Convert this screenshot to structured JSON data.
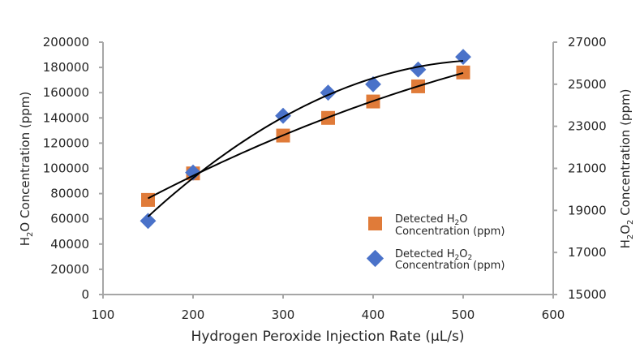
{
  "chart_data": {
    "type": "scatter",
    "title": "",
    "xlabel": "Hydrogen Peroxide Injection Rate (µL/s)",
    "ylabel_left": {
      "pre": "H",
      "sub": "2",
      "post": "O Concentration (ppm)"
    },
    "ylabel_right": {
      "pre": "H",
      "sub1": "2",
      "mid": "O",
      "sub2": "2",
      "post": " Concentration (ppm)"
    },
    "xlim": [
      100,
      600
    ],
    "ylim_left": [
      0,
      200000
    ],
    "ylim_right": [
      15000,
      27000
    ],
    "x_ticks": [
      "100",
      "200",
      "300",
      "400",
      "500",
      "600"
    ],
    "y_ticks_left": [
      "0",
      "20000",
      "40000",
      "60000",
      "80000",
      "100000",
      "120000",
      "140000",
      "160000",
      "180000",
      "200000"
    ],
    "y_ticks_right": [
      "15000",
      "17000",
      "19000",
      "21000",
      "23000",
      "25000",
      "27000"
    ],
    "grid": false,
    "legend_position": "bottom-right-inside",
    "x": [
      150,
      200,
      300,
      350,
      400,
      450,
      500
    ],
    "series": [
      {
        "name": "Detected H2O Concentration (ppm)",
        "legend": {
          "line1_pre": "Detected H",
          "line1_sub": "2",
          "line1_post": "O",
          "line2": "Concentration (ppm)"
        },
        "axis": "left",
        "marker": "square",
        "color": "#E07B39",
        "values": [
          75000,
          96000,
          126000,
          140000,
          153000,
          165000,
          176000
        ],
        "trendline": "polynomial"
      },
      {
        "name": "Detected H2O2 Concentration (ppm)",
        "legend": {
          "line1_pre": "Detected H",
          "line1_sub": "2",
          "line1_mid": "O",
          "line1_sub2": "2",
          "line2": "Concentration (ppm)"
        },
        "axis": "right",
        "marker": "diamond",
        "color": "#4A72C9",
        "values": [
          18500,
          20800,
          23500,
          24600,
          25000,
          25700,
          26300
        ],
        "trendline": "polynomial"
      }
    ],
    "trendline_color": "#000000"
  }
}
